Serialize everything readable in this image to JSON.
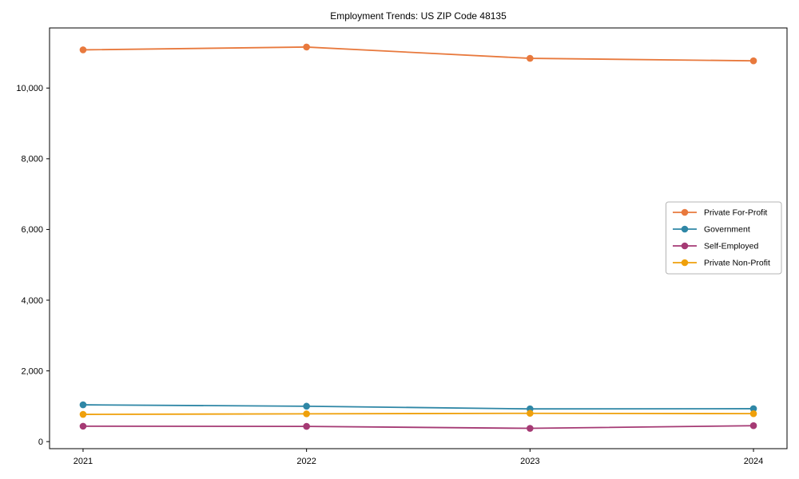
{
  "chart_data": {
    "type": "line",
    "title": "Employment Trends: US ZIP Code 48135",
    "x": [
      2021,
      2022,
      2023,
      2024
    ],
    "x_tick_labels": [
      "2021",
      "2022",
      "2023",
      "2024"
    ],
    "y_ticks": [
      0,
      2000,
      4000,
      6000,
      8000,
      10000
    ],
    "y_tick_labels": [
      "0",
      "2,000",
      "4,000",
      "6,000",
      "8,000",
      "10,000"
    ],
    "xlim": [
      2020.85,
      2024.15
    ],
    "ylim": [
      -200,
      11700
    ],
    "grid": false,
    "legend_position": "center right",
    "marker": "circle",
    "axis_color": "#000000",
    "series": [
      {
        "name": "Private For-Profit",
        "color": "#e8793d",
        "values": [
          11080,
          11160,
          10840,
          10770
        ]
      },
      {
        "name": "Government",
        "color": "#2f87a6",
        "values": [
          1040,
          1000,
          925,
          930
        ]
      },
      {
        "name": "Self-Employed",
        "color": "#a53a74",
        "values": [
          435,
          430,
          375,
          450
        ]
      },
      {
        "name": "Private Non-Profit",
        "color": "#efa00b",
        "values": [
          770,
          785,
          800,
          790
        ]
      }
    ],
    "xlabel": "",
    "ylabel": ""
  }
}
